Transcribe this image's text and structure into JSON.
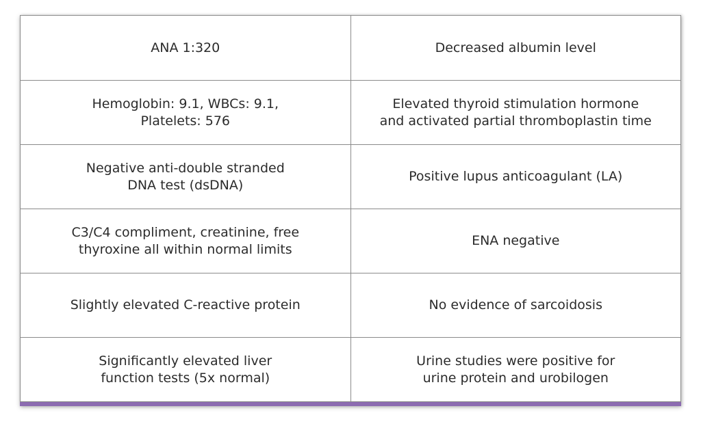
{
  "colors": {
    "accent_bar": "#8c6bb1",
    "border": "#8a8a8a",
    "text": "#2b2b2b"
  },
  "rows": [
    {
      "left": "ANA 1:320",
      "right": "Decreased albumin level"
    },
    {
      "left": "Hemoglobin: 9.1, WBCs: 9.1,\nPlatelets: 576",
      "right": "Elevated thyroid stimulation hormone\nand activated partial thromboplastin time"
    },
    {
      "left": "Negative anti-double stranded\nDNA test (dsDNA)",
      "right": "Positive lupus anticoagulant (LA)"
    },
    {
      "left": "C3/C4 compliment, creatinine, free\nthyroxine all within normal limits",
      "right": "ENA negative"
    },
    {
      "left": "Slightly elevated C-reactive protein",
      "right": "No evidence of sarcoidosis"
    },
    {
      "left": "Significantly elevated liver\nfunction tests (5x normal)",
      "right": "Urine studies were positive for\nurine protein and urobilogen"
    }
  ]
}
